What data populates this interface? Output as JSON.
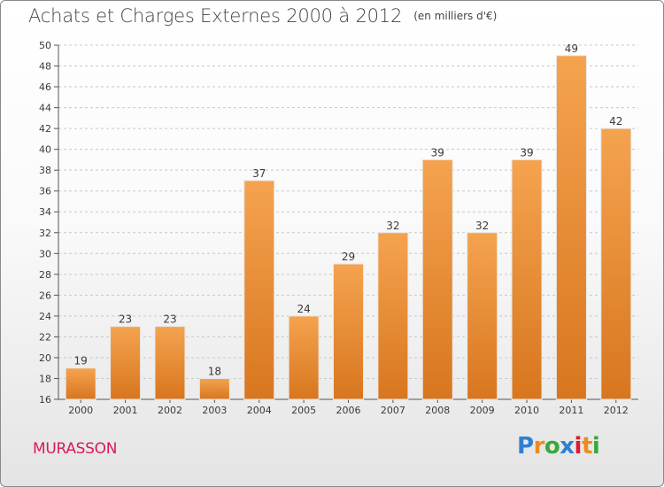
{
  "header": {
    "title": "Achats et Charges Externes 2000 à 2012",
    "unit": "(en milliers d'€)"
  },
  "footer": {
    "place": "MURASSON",
    "logo_text": "Proxiti",
    "logo_colors": [
      "#2f7fd0",
      "#f08a1c",
      "#3aa83a",
      "#2f7fd0",
      "#e2182f",
      "#f08a1c",
      "#3aa83a"
    ]
  },
  "chart_data": {
    "type": "bar",
    "title": "Achats et Charges Externes 2000 à 2012",
    "subtitle": "(en milliers d'€)",
    "categories": [
      "2000",
      "2001",
      "2002",
      "2003",
      "2004",
      "2005",
      "2006",
      "2007",
      "2008",
      "2009",
      "2010",
      "2011",
      "2012"
    ],
    "values": [
      19,
      23,
      23,
      18,
      37,
      24,
      29,
      32,
      39,
      32,
      39,
      49,
      42
    ],
    "value_labels": [
      "19",
      "23",
      "23",
      "18",
      "37",
      "24",
      "29",
      "32",
      "39",
      "32",
      "39",
      "49",
      "42"
    ],
    "ylim": [
      16,
      50
    ],
    "yticks": [
      16,
      18,
      20,
      22,
      24,
      26,
      28,
      30,
      32,
      34,
      36,
      38,
      40,
      42,
      44,
      46,
      48,
      50
    ],
    "xlabel": "",
    "ylabel": "",
    "grid": true,
    "bar_color_top": "#f5a34f",
    "bar_color_bottom": "#d8761f"
  }
}
